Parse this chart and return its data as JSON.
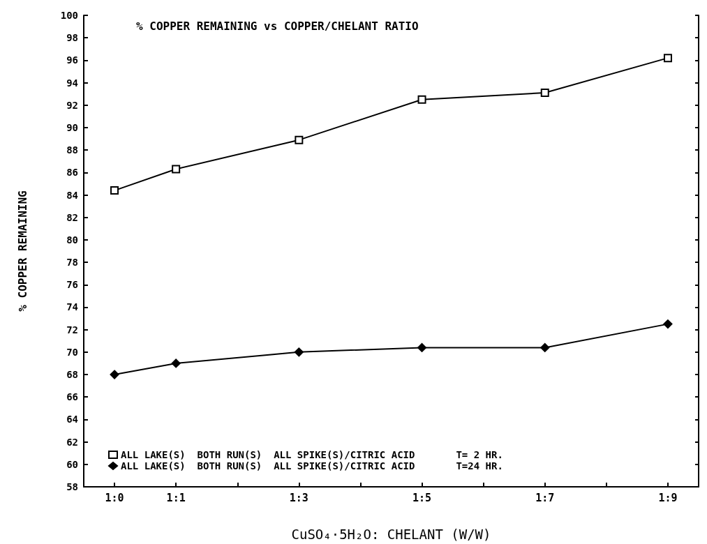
{
  "chart_data": {
    "type": "line",
    "title": "% COPPER REMAINING vs COPPER/CHELANT RATIO",
    "xlabel": "CuSO₄·5H₂O: CHELANT (W/W)",
    "ylabel": "% COPPER REMAINING",
    "categories": [
      "1:0",
      "1:1",
      null,
      "1:3",
      null,
      "1:5",
      null,
      "1:7",
      null,
      "1:9"
    ],
    "ylim": [
      58,
      100
    ],
    "yticks": [
      58,
      60,
      62,
      64,
      66,
      68,
      70,
      72,
      74,
      76,
      78,
      80,
      82,
      84,
      86,
      88,
      90,
      92,
      94,
      96,
      98,
      100
    ],
    "series": [
      {
        "name": "ALL LAKE(S)  BOTH RUN(S)  ALL SPIKE(S)/CITRIC ACID       T= 2 HR.",
        "color": "#000000",
        "marker": "square",
        "values": [
          84.4,
          86.3,
          null,
          88.9,
          null,
          92.5,
          null,
          93.1,
          null,
          96.2
        ]
      },
      {
        "name": "ALL LAKE(S)  BOTH RUN(S)  ALL SPIKE(S)/CITRIC ACID       T=24 HR.",
        "color": "#000000",
        "marker": "diamond",
        "values": [
          68.0,
          69.0,
          null,
          70.0,
          null,
          70.4,
          null,
          70.4,
          null,
          72.5
        ]
      }
    ],
    "grid": false,
    "legend": "bottom left",
    "line_style": "solid"
  }
}
